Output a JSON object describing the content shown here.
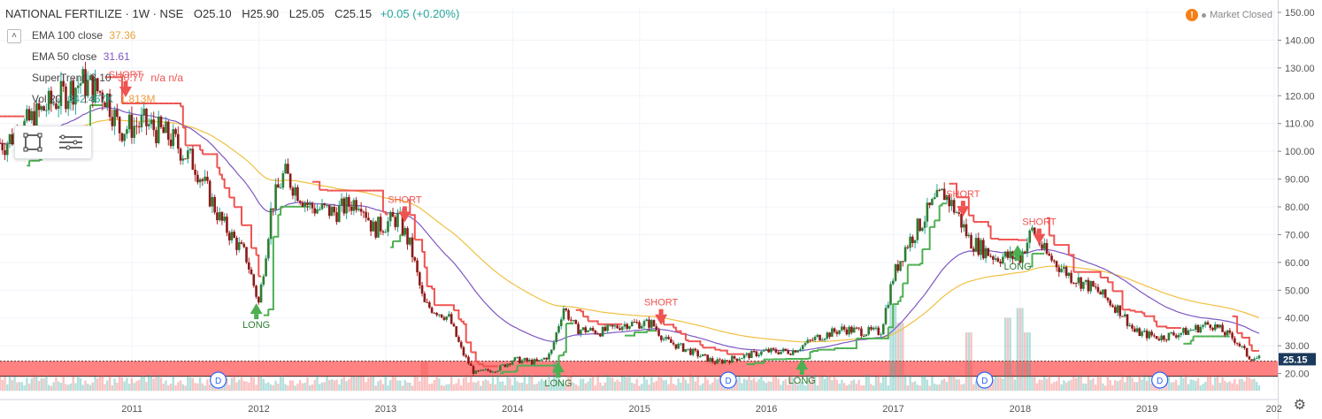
{
  "header": {
    "symbol": "NATIONAL FERTILIZE · 1W · NSE",
    "open": "O25.10",
    "high": "H25.90",
    "low": "L25.05",
    "close": "C25.15",
    "change": "+0.05 (+0.20%)"
  },
  "legend": [
    {
      "name": "EMA 100 close",
      "value": "37.36",
      "color": "#e8a23a"
    },
    {
      "name": "EMA 50 close",
      "value": "31.61",
      "color": "#7e57c2"
    },
    {
      "name": "SuperTrend 3 10",
      "value": "30.77",
      "extra": "n/a n/a",
      "color": "#ef5350"
    },
    {
      "name": "Vol 20",
      "value": "342.467K",
      "extra": "1.813M",
      "color": "#26a69a"
    }
  ],
  "status": {
    "text": "Market Closed"
  },
  "toolbox": {
    "rect_icon": "rectangle-icon",
    "lines_icon": "lines-icon"
  },
  "colors": {
    "up": "#26a69a",
    "down": "#ef5350",
    "supertrend_up": "#4caf50",
    "supertrend_down": "#ef5350",
    "ema100": "#f0c040",
    "ema50": "#7e57c2",
    "zone": "#ff6b6b"
  },
  "chart_data": {
    "type": "candlestick",
    "y_axis": {
      "min": 17,
      "max": 150,
      "ticks": [
        20,
        30,
        40,
        50,
        60,
        70,
        80,
        90,
        100,
        110,
        120,
        130,
        140,
        150
      ],
      "last_price": "25.15"
    },
    "x_axis": {
      "labels": [
        "2011",
        "2012",
        "2013",
        "2014",
        "2015",
        "2016",
        "2017",
        "2018",
        "2019",
        "202"
      ]
    },
    "zone": {
      "from": 19,
      "to": 24.5
    },
    "price_path": [
      [
        2010.0,
        103
      ],
      [
        2010.3,
        115
      ],
      [
        2010.6,
        125
      ],
      [
        2010.8,
        120
      ],
      [
        2010.9,
        108
      ],
      [
        2011.1,
        110
      ],
      [
        2011.3,
        105
      ],
      [
        2011.5,
        95
      ],
      [
        2011.7,
        75
      ],
      [
        2011.9,
        62
      ],
      [
        2012.0,
        45
      ],
      [
        2012.1,
        80
      ],
      [
        2012.2,
        92
      ],
      [
        2012.4,
        80
      ],
      [
        2012.6,
        78
      ],
      [
        2012.8,
        83
      ],
      [
        2012.9,
        72
      ],
      [
        2013.1,
        76
      ],
      [
        2013.2,
        65
      ],
      [
        2013.3,
        45
      ],
      [
        2013.5,
        40
      ],
      [
        2013.6,
        28
      ],
      [
        2013.7,
        20
      ],
      [
        2013.9,
        22
      ],
      [
        2014.0,
        25
      ],
      [
        2014.2,
        24
      ],
      [
        2014.3,
        27
      ],
      [
        2014.4,
        44
      ],
      [
        2014.5,
        36
      ],
      [
        2014.7,
        35
      ],
      [
        2014.9,
        38
      ],
      [
        2015.1,
        38
      ],
      [
        2015.2,
        32
      ],
      [
        2015.4,
        28
      ],
      [
        2015.6,
        24
      ],
      [
        2015.8,
        26
      ],
      [
        2016.0,
        28
      ],
      [
        2016.2,
        28
      ],
      [
        2016.4,
        33
      ],
      [
        2016.6,
        36
      ],
      [
        2016.8,
        35
      ],
      [
        2016.9,
        35
      ],
      [
        2017.0,
        55
      ],
      [
        2017.1,
        66
      ],
      [
        2017.3,
        80
      ],
      [
        2017.4,
        85
      ],
      [
        2017.5,
        78
      ],
      [
        2017.6,
        68
      ],
      [
        2017.8,
        62
      ],
      [
        2018.0,
        62
      ],
      [
        2018.1,
        72
      ],
      [
        2018.2,
        63
      ],
      [
        2018.4,
        55
      ],
      [
        2018.6,
        50
      ],
      [
        2018.8,
        42
      ],
      [
        2018.9,
        35
      ],
      [
        2019.1,
        33
      ],
      [
        2019.3,
        35
      ],
      [
        2019.5,
        38
      ],
      [
        2019.7,
        32
      ],
      [
        2019.8,
        26
      ],
      [
        2019.9,
        25.15
      ]
    ],
    "volume_spikes": [
      [
        2017.0,
        0.9
      ],
      [
        2017.05,
        0.7
      ],
      [
        2017.6,
        0.6
      ],
      [
        2017.9,
        0.75
      ],
      [
        2018.0,
        0.85
      ],
      [
        2018.05,
        0.6
      ],
      [
        2013.3,
        0.3
      ],
      [
        2014.35,
        0.3
      ]
    ],
    "signals": [
      {
        "type": "SHORT",
        "x": 2010.95,
        "y": 122
      },
      {
        "type": "LONG",
        "x": 2011.98,
        "y": 44
      },
      {
        "type": "SHORT",
        "x": 2013.15,
        "y": 77
      },
      {
        "type": "LONG",
        "x": 2014.36,
        "y": 23
      },
      {
        "type": "SHORT",
        "x": 2015.17,
        "y": 40
      },
      {
        "type": "LONG",
        "x": 2016.28,
        "y": 24
      },
      {
        "type": "SHORT",
        "x": 2017.55,
        "y": 79
      },
      {
        "type": "LONG",
        "x": 2017.98,
        "y": 65
      },
      {
        "type": "SHORT",
        "x": 2018.15,
        "y": 69
      }
    ],
    "dividend_markers": [
      2011.68,
      2015.7,
      2017.72,
      2019.1
    ],
    "dividend_label": "D"
  }
}
